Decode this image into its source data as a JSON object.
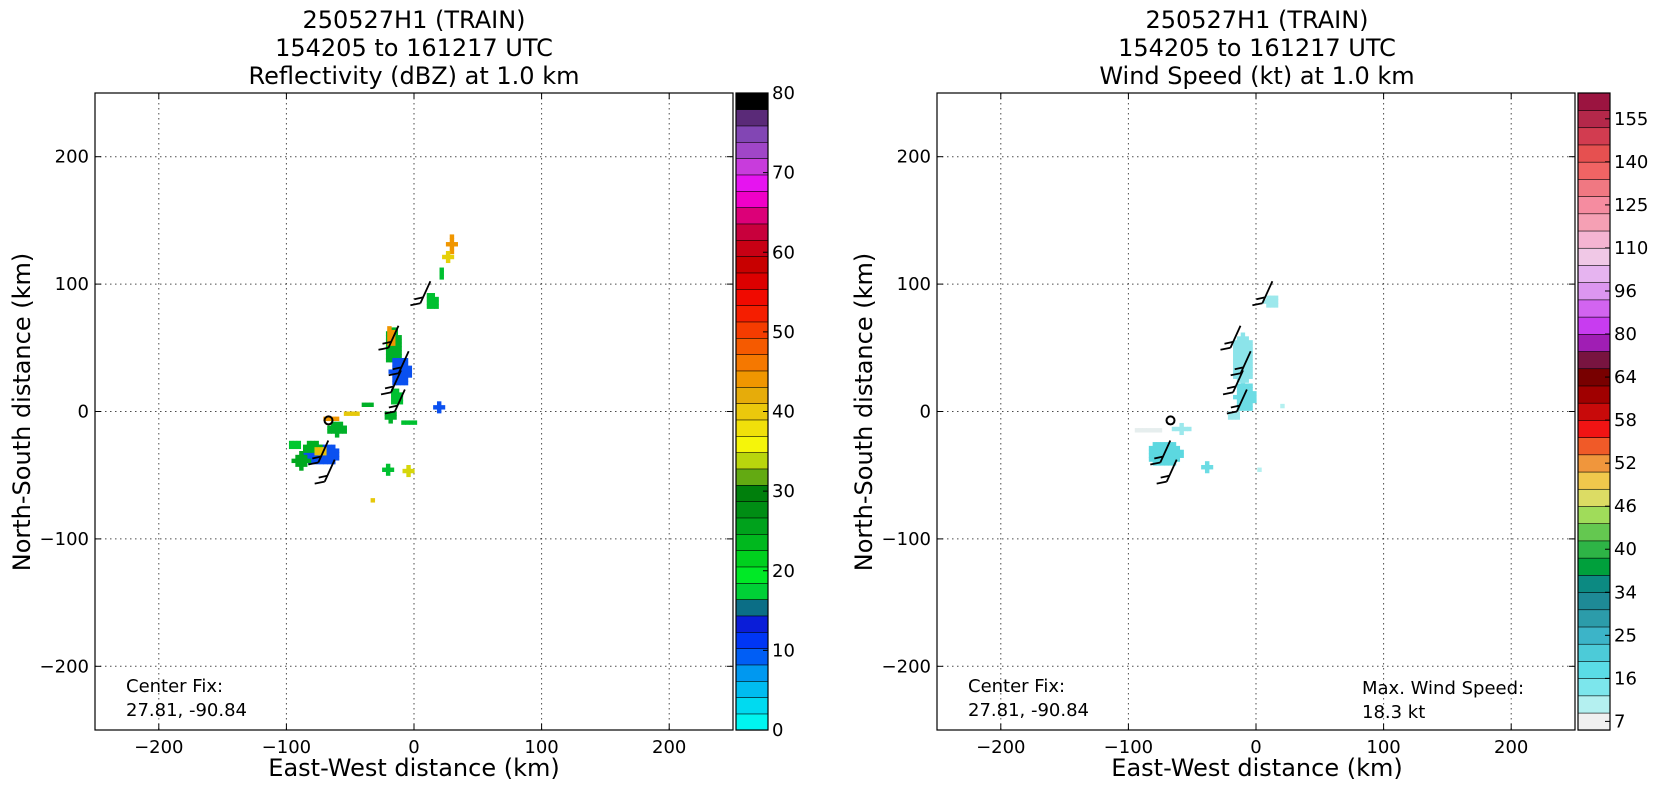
{
  "chart_data": [
    {
      "type": "heatmap",
      "title_lines": [
        "250527H1 (TRAIN)",
        "154205 to 161217 UTC",
        "Reflectivity (dBZ) at 1.0 km"
      ],
      "xlabel": "East-West distance (km)",
      "ylabel": "North-South distance (km)",
      "xlim": [
        -250,
        250
      ],
      "ylim": [
        -250,
        250
      ],
      "xticks": [
        -200,
        -100,
        0,
        100,
        200
      ],
      "yticks": [
        -200,
        -100,
        0,
        100,
        200
      ],
      "xtick_labels": [
        "−200",
        "−100",
        "0",
        "100",
        "200"
      ],
      "ytick_labels": [
        "−200",
        "−100",
        "0",
        "100",
        "200"
      ],
      "grid": true,
      "annotations": [
        "Center Fix:",
        "27.81, -90.84"
      ],
      "center_marker": [
        -67,
        -7
      ],
      "colorbar": {
        "min": 0,
        "max": 80,
        "ticks": [
          "0",
          "10",
          "20",
          "30",
          "40",
          "50",
          "60",
          "70",
          "80"
        ],
        "colors": [
          "#00f5f0",
          "#00daf0",
          "#00bcf0",
          "#0098f0",
          "#005ef5",
          "#0036f5",
          "#0a1dd8",
          "#0b6e86",
          "#00d036",
          "#00e926",
          "#00d01e",
          "#00b81e",
          "#00a21c",
          "#008d14",
          "#007f0c",
          "#63aa12",
          "#b9d50d",
          "#f5f50a",
          "#f0e00a",
          "#ebc80c",
          "#e6ac0a",
          "#f09600",
          "#f57800",
          "#f55a00",
          "#f53c00",
          "#f51e00",
          "#f00a00",
          "#dc0000",
          "#c80000",
          "#c80014",
          "#c8003c",
          "#dc0078",
          "#f000c8",
          "#e614f0",
          "#c83cdc",
          "#a046c8",
          "#8246b4",
          "#5a2a78",
          "#000000"
        ]
      },
      "echo_regions": [
        {
          "cx": -75,
          "cy": -35,
          "rx": 14,
          "ry": 9,
          "color": "#0a50f0"
        },
        {
          "cx": -82,
          "cy": -30,
          "rx": 8,
          "ry": 5,
          "color": "#00b020"
        },
        {
          "cx": -76,
          "cy": -33,
          "rx": 5,
          "ry": 4,
          "color": "#e8c00a"
        },
        {
          "cx": -90,
          "cy": -40,
          "rx": 6,
          "ry": 6,
          "color": "#00a81e"
        },
        {
          "cx": -96,
          "cy": -28,
          "rx": 5,
          "ry": 4,
          "color": "#00c830"
        },
        {
          "cx": -62,
          "cy": -15,
          "rx": 9,
          "ry": 5,
          "color": "#00b028"
        },
        {
          "cx": -66,
          "cy": -7,
          "rx": 5,
          "ry": 3,
          "color": "#f09600"
        },
        {
          "cx": -50,
          "cy": -3,
          "rx": 5,
          "ry": 3,
          "color": "#e6c80a"
        },
        {
          "cx": -37,
          "cy": 4,
          "rx": 4,
          "ry": 3,
          "color": "#00b028"
        },
        {
          "cx": -18,
          "cy": 50,
          "rx": 7,
          "ry": 14,
          "color": "#00b028"
        },
        {
          "cx": -20,
          "cy": 57,
          "rx": 4,
          "ry": 8,
          "color": "#f09600"
        },
        {
          "cx": -12,
          "cy": 30,
          "rx": 8,
          "ry": 12,
          "color": "#0a50f0"
        },
        {
          "cx": -16,
          "cy": 10,
          "rx": 5,
          "ry": 7,
          "color": "#00c030"
        },
        {
          "cx": -20,
          "cy": -5,
          "rx": 6,
          "ry": 4,
          "color": "#00b028"
        },
        {
          "cx": -5,
          "cy": -10,
          "rx": 5,
          "ry": 3,
          "color": "#00c030"
        },
        {
          "cx": 12,
          "cy": 85,
          "rx": 5,
          "ry": 7,
          "color": "#00c030"
        },
        {
          "cx": 28,
          "cy": 130,
          "rx": 3,
          "ry": 6,
          "color": "#f09600"
        },
        {
          "cx": 20,
          "cy": 108,
          "rx": 3,
          "ry": 4,
          "color": "#00c030"
        },
        {
          "cx": 18,
          "cy": 2,
          "rx": 3,
          "ry": 3,
          "color": "#0a50f0"
        },
        {
          "cx": -22,
          "cy": -47,
          "rx": 3,
          "ry": 3,
          "color": "#00c030"
        },
        {
          "cx": -6,
          "cy": -48,
          "rx": 3,
          "ry": 3,
          "color": "#d6d60a"
        },
        {
          "cx": -35,
          "cy": -72,
          "rx": 2,
          "ry": 2,
          "color": "#e6c80a"
        },
        {
          "cx": 25,
          "cy": 120,
          "rx": 3,
          "ry": 3,
          "color": "#e6d00a"
        }
      ],
      "wind_barbs": [
        [
          -75,
          -40
        ],
        [
          -70,
          -55
        ],
        [
          -20,
          50
        ],
        [
          -12,
          30
        ],
        [
          -18,
          15
        ],
        [
          -15,
          0
        ],
        [
          5,
          85
        ]
      ]
    },
    {
      "type": "heatmap",
      "title_lines": [
        "250527H1 (TRAIN)",
        "154205 to 161217 UTC",
        "Wind Speed (kt) at 1.0 km"
      ],
      "xlabel": "East-West distance (km)",
      "ylabel": "North-South distance (km)",
      "xlim": [
        -250,
        250
      ],
      "ylim": [
        -250,
        250
      ],
      "xticks": [
        -200,
        -100,
        0,
        100,
        200
      ],
      "yticks": [
        -200,
        -100,
        0,
        100,
        200
      ],
      "xtick_labels": [
        "−200",
        "−100",
        "0",
        "100",
        "200"
      ],
      "ytick_labels": [
        "−200",
        "−100",
        "0",
        "100",
        "200"
      ],
      "grid": true,
      "annotations": [
        "Center Fix:",
        "27.81, -90.84"
      ],
      "annotations_right": [
        "Max. Wind Speed:",
        "18.3 kt"
      ],
      "center_marker": [
        -67,
        -7
      ],
      "colorbar": {
        "min": 7,
        "max": 160,
        "ticks": [
          "7",
          "16",
          "25",
          "34",
          "40",
          "46",
          "52",
          "58",
          "64",
          "80",
          "96",
          "110",
          "125",
          "140",
          "155"
        ],
        "colors": [
          "#f0f0f0",
          "#b4f0f0",
          "#7ce6ec",
          "#5adce6",
          "#4ccbd8",
          "#3cb4c8",
          "#2c9caa",
          "#1e8a96",
          "#0c8a82",
          "#00a03c",
          "#2eb446",
          "#64c850",
          "#a0dc5a",
          "#dcdc64",
          "#f0c84c",
          "#f0963c",
          "#f05a28",
          "#f01414",
          "#c80a0a",
          "#a00000",
          "#780000",
          "#781440",
          "#a01eb4",
          "#c83cf0",
          "#d264f0",
          "#dc96f0",
          "#e6b4f0",
          "#f0c8e6",
          "#f5b4d2",
          "#f5a0b4",
          "#f58ca0",
          "#f07882",
          "#f06464",
          "#e65050",
          "#d23c50",
          "#b4284a",
          "#9b1440"
        ]
      },
      "echo_regions": [
        {
          "cx": -73,
          "cy": -35,
          "rx": 14,
          "ry": 10,
          "color": "#5cd8e0"
        },
        {
          "cx": -60,
          "cy": -15,
          "rx": 6,
          "ry": 3,
          "color": "#9ce8ec"
        },
        {
          "cx": -85,
          "cy": -16,
          "rx": 10,
          "ry": 3,
          "color": "#e6eeee"
        },
        {
          "cx": -12,
          "cy": 40,
          "rx": 9,
          "ry": 20,
          "color": "#8ce4ea"
        },
        {
          "cx": -10,
          "cy": 10,
          "rx": 8,
          "ry": 12,
          "color": "#6cdce4"
        },
        {
          "cx": -20,
          "cy": -5,
          "rx": 5,
          "ry": 4,
          "color": "#9ce8ec"
        },
        {
          "cx": 10,
          "cy": 85,
          "rx": 5,
          "ry": 6,
          "color": "#9ce8ec"
        },
        {
          "cx": -40,
          "cy": -45,
          "rx": 3,
          "ry": 3,
          "color": "#6cdce4"
        },
        {
          "cx": 0,
          "cy": -48,
          "rx": 2,
          "ry": 2,
          "color": "#b4f0f0"
        },
        {
          "cx": 18,
          "cy": 2,
          "rx": 2,
          "ry": 2,
          "color": "#b4f0f0"
        }
      ],
      "wind_barbs": [
        [
          -75,
          -40
        ],
        [
          -70,
          -55
        ],
        [
          -20,
          50
        ],
        [
          -12,
          30
        ],
        [
          -18,
          15
        ],
        [
          -15,
          0
        ],
        [
          5,
          85
        ]
      ]
    }
  ]
}
